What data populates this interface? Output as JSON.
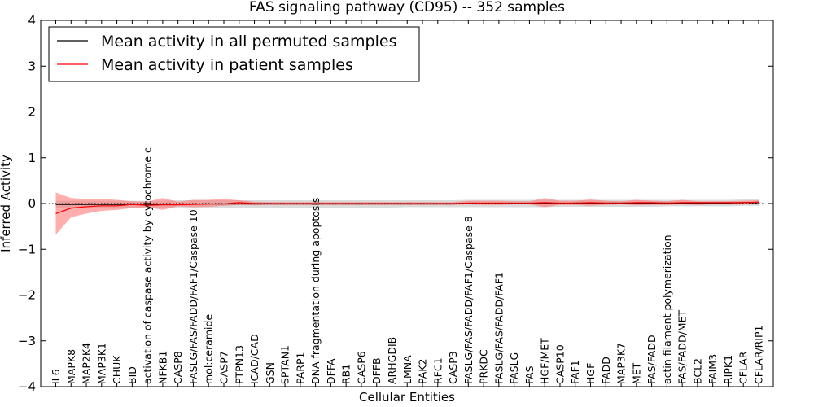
{
  "chart_data": {
    "type": "line",
    "title": "FAS signaling pathway (CD95) -- 352 samples",
    "xlabel": "Cellular Entities",
    "ylabel": "Inferred Activity",
    "ylim": [
      -4,
      4
    ],
    "yticks": [
      "−4",
      "−3",
      "−2",
      "−1",
      "0",
      "1",
      "2",
      "3",
      "4"
    ],
    "legend_position": "top-left",
    "categories": [
      "IL6",
      "MAPK8",
      "MAP2K4",
      "MAP3K1",
      "CHUK",
      "BID",
      "activation of caspase activity by cytochrome c",
      "NFKB1",
      "CASP8",
      "FASLG/FAS/FADD/FAF1/Caspase 10",
      "mol:ceramide",
      "CASP7",
      "PTPN13",
      "ICAD/CAD",
      "GSN",
      "SPTAN1",
      "PARP1",
      "DNA fragmentation during apoptosis",
      "DFFA",
      "RB1",
      "CASP6",
      "DFFB",
      "ARHGDIB",
      "LMNA",
      "PAK2",
      "RFC1",
      "CASP3",
      "FASLG/FAS/FADD/FAF1/Caspase 8",
      "PRKDC",
      "FASLG/FAS/FADD/FAF1",
      "FASLG",
      "FAS",
      "HGF/MET",
      "CASP10",
      "FAF1",
      "HGF",
      "FADD",
      "MAP3K7",
      "MET",
      "FAS/FADD",
      "actin filament polymerization",
      "FAS/FADD/MET",
      "BCL2",
      "FAIM3",
      "RIPK1",
      "CFLAR",
      "CFLAR/RIP1"
    ],
    "series": [
      {
        "name": "Mean activity in all permuted samples",
        "color": "#000000",
        "values": [
          -0.02,
          -0.02,
          -0.02,
          -0.02,
          -0.02,
          -0.02,
          -0.02,
          -0.02,
          -0.01,
          -0.01,
          -0.01,
          -0.01,
          -0.01,
          -0.01,
          -0.01,
          -0.01,
          -0.01,
          -0.01,
          -0.01,
          -0.01,
          -0.01,
          -0.01,
          -0.01,
          -0.01,
          -0.01,
          -0.01,
          -0.01,
          0.0,
          0.0,
          0.0,
          0.0,
          0.0,
          0.0,
          0.0,
          0.01,
          0.01,
          0.01,
          0.01,
          0.01,
          0.01,
          0.01,
          0.01,
          0.01,
          0.01,
          0.01,
          0.02,
          0.02
        ],
        "lower": [
          -0.1,
          -0.1,
          -0.1,
          -0.1,
          -0.1,
          -0.1,
          -0.1,
          -0.1,
          -0.09,
          -0.09,
          -0.09,
          -0.09,
          -0.09,
          -0.09,
          -0.09,
          -0.09,
          -0.09,
          -0.09,
          -0.09,
          -0.09,
          -0.09,
          -0.09,
          -0.09,
          -0.08,
          -0.08,
          -0.08,
          -0.08,
          -0.08,
          -0.08,
          -0.08,
          -0.08,
          -0.08,
          -0.08,
          -0.07,
          -0.07,
          -0.07,
          -0.07,
          -0.07,
          -0.07,
          -0.07,
          -0.06,
          -0.06,
          -0.06,
          -0.06,
          -0.06,
          -0.05,
          -0.05
        ],
        "upper": [
          0.06,
          0.06,
          0.06,
          0.06,
          0.06,
          0.06,
          0.06,
          0.06,
          0.07,
          0.07,
          0.07,
          0.07,
          0.07,
          0.07,
          0.07,
          0.07,
          0.07,
          0.07,
          0.07,
          0.07,
          0.07,
          0.07,
          0.07,
          0.07,
          0.07,
          0.07,
          0.07,
          0.08,
          0.08,
          0.08,
          0.08,
          0.08,
          0.08,
          0.08,
          0.08,
          0.08,
          0.08,
          0.08,
          0.08,
          0.08,
          0.08,
          0.08,
          0.08,
          0.08,
          0.08,
          0.09,
          0.09
        ]
      },
      {
        "name": "Mean activity in patient samples",
        "color": "#ff0000",
        "values": [
          -0.22,
          -0.1,
          -0.07,
          -0.05,
          -0.05,
          -0.02,
          -0.04,
          -0.03,
          -0.03,
          -0.02,
          -0.01,
          -0.01,
          0.02,
          0.0,
          0.0,
          0.0,
          0.0,
          0.0,
          0.0,
          0.0,
          0.0,
          0.0,
          0.0,
          0.0,
          0.0,
          0.0,
          0.0,
          0.01,
          0.01,
          0.01,
          0.01,
          0.01,
          0.02,
          0.01,
          0.01,
          0.02,
          0.01,
          0.01,
          0.02,
          0.02,
          0.01,
          0.02,
          0.02,
          0.02,
          0.02,
          0.02,
          0.03
        ],
        "lower": [
          -0.68,
          -0.3,
          -0.22,
          -0.16,
          -0.14,
          -0.1,
          -0.08,
          -0.14,
          -0.06,
          -0.08,
          -0.07,
          -0.05,
          -0.03,
          -0.04,
          -0.03,
          -0.03,
          -0.03,
          -0.03,
          -0.03,
          -0.03,
          -0.03,
          -0.03,
          -0.03,
          -0.03,
          -0.03,
          -0.03,
          -0.03,
          -0.02,
          -0.03,
          -0.03,
          -0.02,
          -0.02,
          -0.08,
          -0.03,
          -0.03,
          -0.05,
          -0.03,
          -0.02,
          -0.04,
          -0.03,
          -0.03,
          -0.02,
          -0.03,
          -0.02,
          -0.02,
          -0.02,
          -0.02
        ],
        "upper": [
          0.24,
          0.12,
          0.1,
          0.1,
          0.08,
          0.05,
          0.04,
          0.12,
          0.04,
          0.08,
          0.08,
          0.1,
          0.07,
          0.04,
          0.03,
          0.03,
          0.03,
          0.03,
          0.03,
          0.03,
          0.03,
          0.03,
          0.03,
          0.03,
          0.03,
          0.03,
          0.03,
          0.06,
          0.06,
          0.06,
          0.05,
          0.05,
          0.12,
          0.06,
          0.06,
          0.09,
          0.06,
          0.05,
          0.08,
          0.06,
          0.05,
          0.08,
          0.05,
          0.05,
          0.05,
          0.06,
          0.07
        ]
      }
    ]
  }
}
